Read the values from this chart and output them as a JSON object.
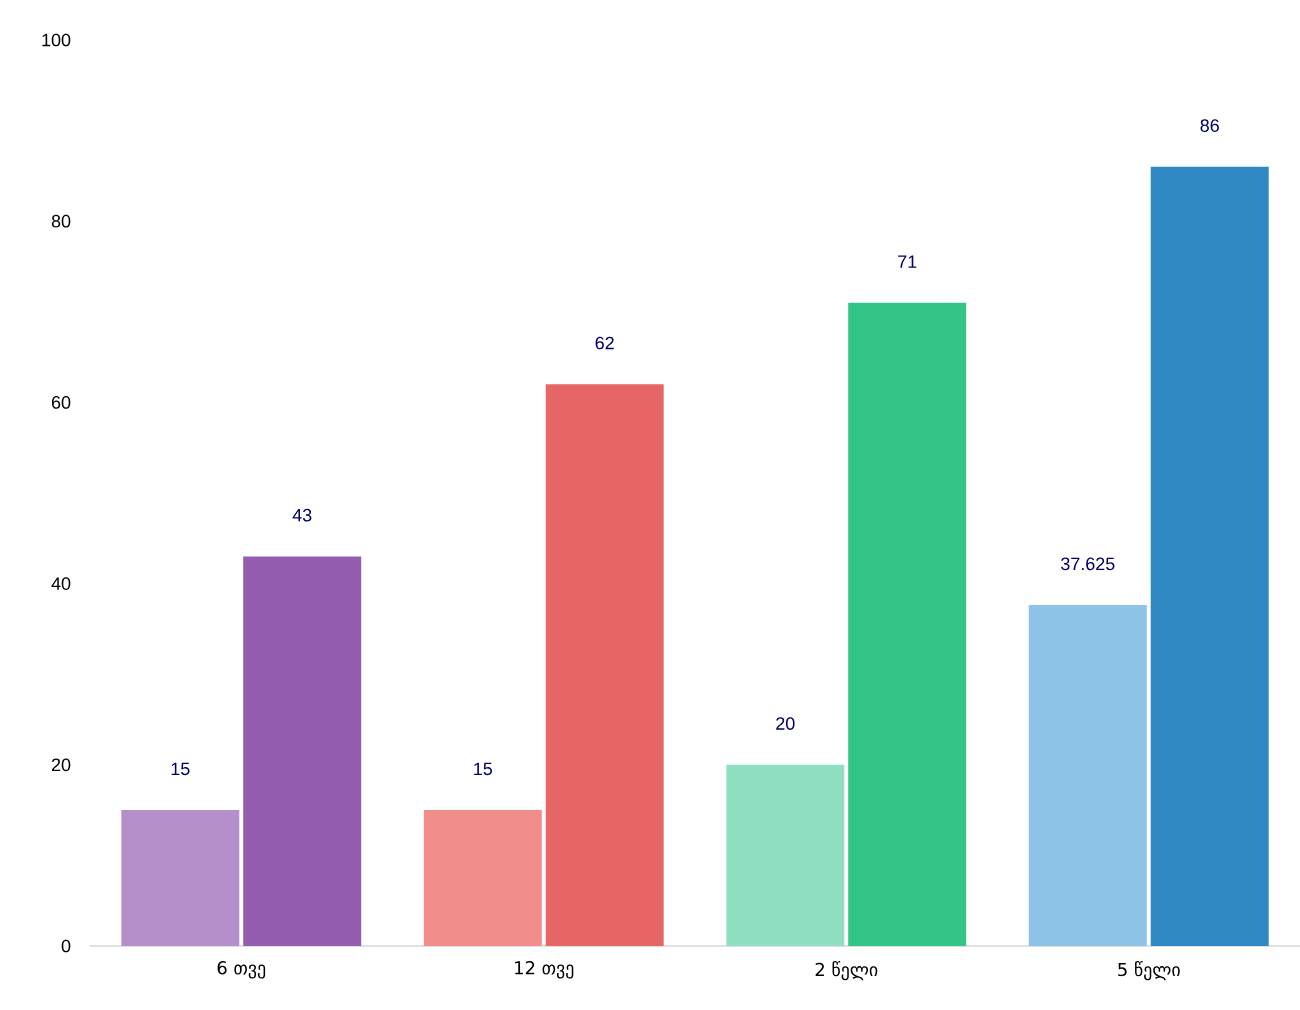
{
  "chart_data": {
    "type": "bar",
    "categories": [
      "6 თვე",
      "12 თვე",
      "2 წელი",
      "5 წელი"
    ],
    "series": [
      {
        "colors": [
          "#b48fca",
          "#f08c8a",
          "#8fe0c0",
          "#8cc3e6"
        ],
        "values": [
          15,
          15,
          20,
          37.625
        ]
      },
      {
        "colors": [
          "#945db0",
          "#e66565",
          "#33c487",
          "#2f8ac4"
        ],
        "values": [
          43,
          62,
          71,
          86
        ]
      }
    ],
    "ylim": [
      0,
      100
    ],
    "yticks": [
      0,
      20,
      40,
      60,
      80,
      100
    ],
    "data_labels": true,
    "grid": false
  }
}
